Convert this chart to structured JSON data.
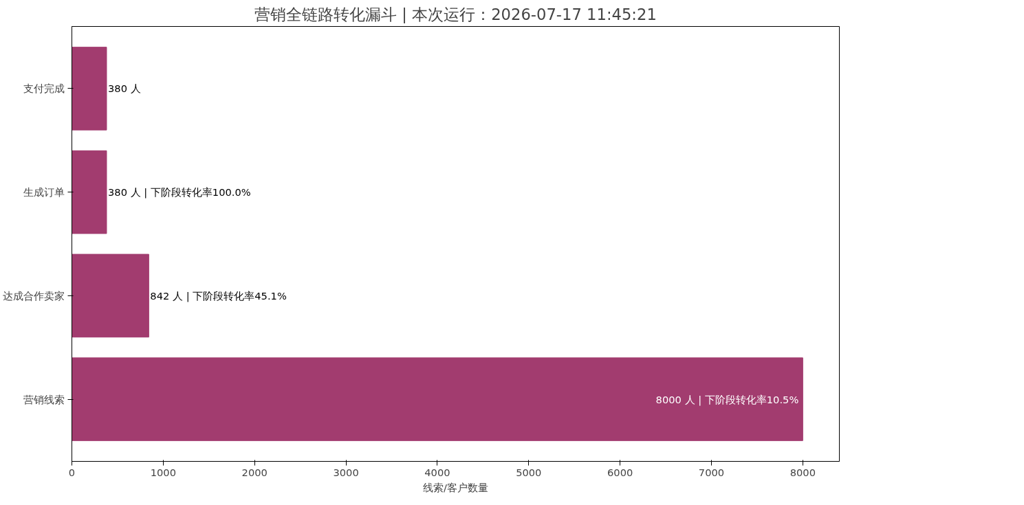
{
  "chart_data": {
    "type": "bar",
    "orientation": "horizontal",
    "title": "营销全链路转化漏斗 | 本次运行：2026-07-17 11:45:21",
    "xlabel": "线索/客户数量",
    "categories": [
      "支付完成",
      "生成订单",
      "达成合作卖家",
      "营销线索"
    ],
    "values": [
      380,
      380,
      842,
      8000
    ],
    "color": "#a23c6f",
    "value_labels": [
      "380 人",
      "380 人 | 下阶段转化率100.0%",
      "842 人 | 下阶段转化率45.1%",
      "8000 人 | 下阶段转化率10.5%"
    ],
    "xlim": [
      0,
      8400
    ],
    "xticks": [
      0,
      1000,
      2000,
      3000,
      4000,
      5000,
      6000,
      7000,
      8000
    ],
    "grid": false
  }
}
